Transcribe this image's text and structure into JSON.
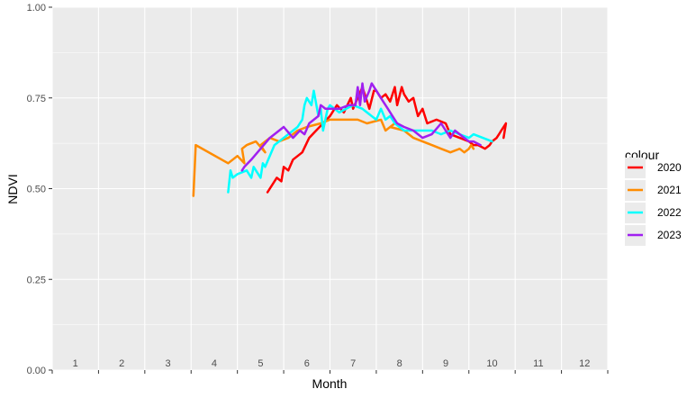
{
  "chart_data": {
    "type": "line",
    "xlabel": "Month",
    "ylabel": "NDVI",
    "xlim": [
      0,
      12
    ],
    "ylim": [
      0,
      1
    ],
    "x_tick_labels": [
      "1",
      "2",
      "3",
      "4",
      "5",
      "6",
      "7",
      "8",
      "9",
      "10",
      "11",
      "12"
    ],
    "y_ticks": [
      0,
      0.25,
      0.5,
      0.75,
      1
    ],
    "y_tick_labels": [
      "0.00",
      "0.25",
      "0.50",
      "0.75",
      "1.00"
    ],
    "grid": true,
    "legend_title": "colour",
    "legend_position": "right",
    "series": [
      {
        "name": "2020",
        "color": "#ff0000",
        "x": [
          4.65,
          4.85,
          4.95,
          5.0,
          5.1,
          5.2,
          5.4,
          5.55,
          5.7,
          5.85,
          6.0,
          6.15,
          6.3,
          6.45,
          6.5,
          6.6,
          6.7,
          6.75,
          6.85,
          6.95,
          7.0,
          7.1,
          7.2,
          7.3,
          7.4,
          7.45,
          7.55,
          7.6,
          7.7,
          7.8,
          7.9,
          8.0,
          8.1,
          8.3,
          8.5,
          8.6,
          8.8,
          9.0,
          9.1,
          9.2,
          9.35,
          9.45,
          9.5,
          9.6,
          9.65,
          9.7,
          9.75,
          9.8,
          9.75
        ],
        "y": [
          0.49,
          0.53,
          0.52,
          0.56,
          0.55,
          0.58,
          0.6,
          0.64,
          0.66,
          0.68,
          0.7,
          0.73,
          0.71,
          0.75,
          0.72,
          0.75,
          0.78,
          0.76,
          0.72,
          0.77,
          0.77,
          0.75,
          0.76,
          0.74,
          0.78,
          0.73,
          0.78,
          0.76,
          0.74,
          0.75,
          0.7,
          0.72,
          0.68,
          0.69,
          0.68,
          0.65,
          0.64,
          0.63,
          0.62,
          0.62,
          0.61,
          0.62,
          0.63,
          0.64,
          0.65,
          0.66,
          0.67,
          0.68,
          0.64
        ]
      },
      {
        "name": "2021",
        "color": "#ff8c00",
        "x": [
          3.05,
          3.1,
          3.8,
          4.0,
          4.15,
          4.1,
          4.2,
          4.4,
          4.6,
          4.5,
          4.7,
          4.9,
          5.1,
          5.3,
          5.5,
          5.8,
          6.0,
          6.2,
          6.4,
          6.6,
          6.8,
          7.1,
          7.2,
          7.4,
          7.3,
          7.6,
          7.8,
          8.0,
          8.2,
          8.4,
          8.6,
          8.8,
          8.9,
          9.0,
          9.05,
          9.1
        ],
        "y": [
          0.48,
          0.62,
          0.57,
          0.59,
          0.57,
          0.61,
          0.62,
          0.63,
          0.6,
          0.62,
          0.64,
          0.63,
          0.64,
          0.66,
          0.67,
          0.68,
          0.69,
          0.69,
          0.69,
          0.69,
          0.68,
          0.69,
          0.66,
          0.68,
          0.67,
          0.66,
          0.64,
          0.63,
          0.62,
          0.61,
          0.6,
          0.61,
          0.6,
          0.61,
          0.62,
          0.61
        ]
      },
      {
        "name": "2022",
        "color": "#00ffff",
        "x": [
          3.8,
          3.85,
          3.9,
          4.0,
          4.2,
          4.3,
          4.35,
          4.4,
          4.5,
          4.55,
          4.6,
          4.8,
          5.0,
          5.2,
          5.3,
          5.4,
          5.45,
          5.5,
          5.6,
          5.65,
          5.75,
          5.8,
          5.85,
          5.95,
          6.0,
          6.1,
          6.2,
          6.35,
          6.5,
          6.7,
          6.8,
          7.0,
          7.1,
          7.2,
          7.3,
          7.4,
          7.5,
          7.6,
          7.8,
          8.0,
          8.2,
          8.4,
          8.6,
          8.8,
          9.0,
          9.1,
          9.3,
          9.5
        ],
        "y": [
          0.49,
          0.55,
          0.53,
          0.54,
          0.55,
          0.53,
          0.56,
          0.55,
          0.53,
          0.57,
          0.56,
          0.62,
          0.64,
          0.66,
          0.67,
          0.69,
          0.73,
          0.75,
          0.73,
          0.77,
          0.7,
          0.72,
          0.66,
          0.72,
          0.73,
          0.72,
          0.71,
          0.72,
          0.73,
          0.72,
          0.71,
          0.69,
          0.72,
          0.69,
          0.7,
          0.68,
          0.67,
          0.66,
          0.66,
          0.66,
          0.66,
          0.65,
          0.66,
          0.65,
          0.64,
          0.65,
          0.64,
          0.63
        ]
      },
      {
        "name": "2023",
        "color": "#a020f0",
        "x": [
          4.1,
          4.15,
          4.3,
          4.5,
          4.7,
          5.0,
          5.2,
          5.35,
          5.45,
          5.55,
          5.75,
          5.8,
          5.9,
          6.0,
          6.2,
          6.4,
          6.55,
          6.6,
          6.65,
          6.7,
          6.75,
          6.85,
          6.9,
          7.05,
          7.15,
          7.25,
          7.35,
          7.45,
          7.6,
          7.8,
          8.0,
          8.2,
          8.4,
          8.6,
          8.7,
          8.8,
          8.9,
          9.0,
          9.1,
          9.25
        ],
        "y": [
          0.55,
          0.56,
          0.58,
          0.61,
          0.64,
          0.67,
          0.64,
          0.66,
          0.65,
          0.68,
          0.7,
          0.73,
          0.72,
          0.72,
          0.72,
          0.73,
          0.73,
          0.78,
          0.73,
          0.79,
          0.74,
          0.77,
          0.79,
          0.76,
          0.74,
          0.72,
          0.7,
          0.68,
          0.67,
          0.66,
          0.64,
          0.65,
          0.68,
          0.64,
          0.66,
          0.65,
          0.64,
          0.63,
          0.63,
          0.62
        ]
      }
    ]
  }
}
